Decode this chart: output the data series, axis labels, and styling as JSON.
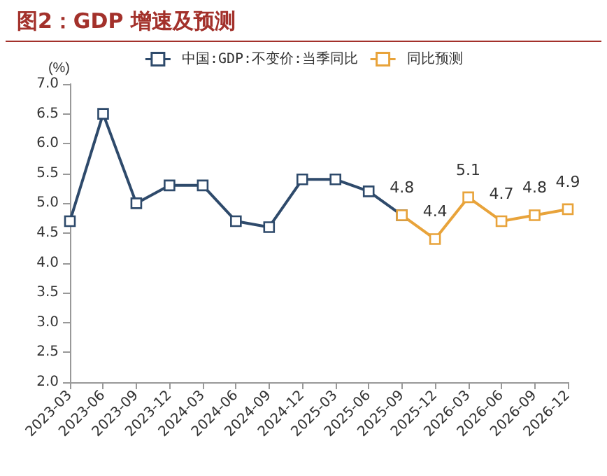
{
  "chart_data": {
    "type": "line",
    "title": "图2：GDP 增速及预测",
    "ylabel": "(%)",
    "categories": [
      "2023-03",
      "2023-06",
      "2023-09",
      "2023-12",
      "2024-03",
      "2024-06",
      "2024-09",
      "2024-12",
      "2025-03",
      "2025-06",
      "2025-09",
      "2025-12",
      "2026-03",
      "2026-06",
      "2026-09",
      "2026-12"
    ],
    "series": [
      {
        "name": "中国:GDP:不变价:当季同比",
        "color": "#2e4a6b",
        "values": [
          4.7,
          6.5,
          5.0,
          5.3,
          5.3,
          4.7,
          4.6,
          5.4,
          5.4,
          5.2,
          4.8,
          null,
          null,
          null,
          null,
          null
        ]
      },
      {
        "name": "同比预测",
        "color": "#e8a33a",
        "values": [
          null,
          null,
          null,
          null,
          null,
          null,
          null,
          null,
          null,
          null,
          4.8,
          4.4,
          5.1,
          4.7,
          4.8,
          4.9
        ],
        "value_labels": [
          null,
          null,
          null,
          null,
          null,
          null,
          null,
          null,
          null,
          null,
          "4.8",
          "4.4",
          "5.1",
          "4.7",
          "4.8",
          "4.9"
        ]
      }
    ],
    "ylim": [
      2.0,
      7.0
    ],
    "yticks": [
      {
        "value": 2,
        "label": "2.0"
      },
      {
        "value": 2.5,
        "label": "2.5"
      },
      {
        "value": 3,
        "label": "3.0"
      },
      {
        "value": 3.5,
        "label": "3.5"
      },
      {
        "value": 4,
        "label": "4.0"
      },
      {
        "value": 4.5,
        "label": "4.5"
      },
      {
        "value": 5,
        "label": "5.0"
      },
      {
        "value": 5.5,
        "label": "5.5"
      },
      {
        "value": 6,
        "label": "6.0"
      },
      {
        "value": 6.5,
        "label": "6.5"
      },
      {
        "value": 7,
        "label": "7.0"
      }
    ],
    "grid": false,
    "legend": "top",
    "marker": "square",
    "line_style": "solid"
  }
}
